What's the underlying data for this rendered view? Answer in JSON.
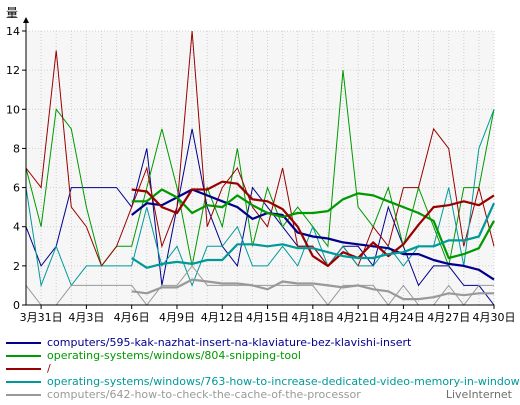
{
  "chart_data": {
    "type": "line",
    "ylabel": "量",
    "ylim": [
      0,
      14
    ],
    "yticks": [
      0,
      2,
      4,
      6,
      8,
      10,
      12,
      14
    ],
    "xticks": [
      "3月31日",
      "4月3日",
      "4月6日",
      "4月9日",
      "4月12日",
      "4月15日",
      "4月18日",
      "4月21日",
      "4月24日",
      "4月27日",
      "4月30日"
    ],
    "x": [
      "3-30",
      "3-31",
      "4-1",
      "4-2",
      "4-3",
      "4-4",
      "4-5",
      "4-6",
      "4-7",
      "4-8",
      "4-9",
      "4-10",
      "4-11",
      "4-12",
      "4-13",
      "4-14",
      "4-15",
      "4-16",
      "4-17",
      "4-18",
      "4-19",
      "4-20",
      "4-21",
      "4-22",
      "4-23",
      "4-24",
      "4-25",
      "4-26",
      "4-27",
      "4-28",
      "4-29",
      "4-30"
    ],
    "grid": true,
    "legend_position": "bottom",
    "series": [
      {
        "name": "computers/595-kak-nazhat-insert-na-klaviature-bez-klavishi-insert",
        "color": "#00008b",
        "daily": [
          4,
          2,
          3,
          6,
          6,
          6,
          6,
          5,
          8,
          1,
          5,
          9,
          5,
          3,
          2,
          6,
          5,
          4,
          3,
          3,
          2,
          3,
          3,
          2,
          5,
          3,
          1,
          2,
          2,
          1,
          1,
          0
        ],
        "avg": [
          null,
          null,
          null,
          null,
          null,
          null,
          null,
          4.6,
          5.2,
          5.1,
          5.5,
          5.9,
          5.6,
          5.3,
          5.0,
          4.4,
          4.7,
          4.6,
          3.7,
          3.5,
          3.4,
          3.2,
          3.1,
          3.0,
          2.9,
          2.6,
          2.6,
          2.3,
          2.1,
          2.0,
          1.8,
          1.3
        ]
      },
      {
        "name": "operating-systems/windows/804-snipping-tool",
        "color": "#009900",
        "daily": [
          7,
          4,
          10,
          9,
          5,
          2,
          3,
          3,
          6,
          9,
          6,
          2,
          6,
          4,
          8,
          3,
          6,
          4,
          5,
          4,
          3,
          12,
          5,
          4,
          6,
          3,
          6,
          4,
          2,
          6,
          6,
          10
        ],
        "avg": [
          null,
          null,
          null,
          null,
          null,
          null,
          null,
          5.3,
          5.3,
          5.9,
          5.5,
          4.7,
          5.1,
          5.0,
          5.6,
          5.1,
          4.7,
          4.5,
          4.7,
          4.7,
          4.8,
          5.4,
          5.7,
          5.6,
          5.3,
          5.0,
          4.7,
          4.3,
          2.4,
          2.6,
          2.9,
          4.3
        ]
      },
      {
        "name": "/",
        "color": "#990000",
        "daily": [
          7,
          6,
          13,
          5,
          4,
          2,
          3,
          5,
          7,
          3,
          5,
          14,
          4,
          6,
          7,
          5,
          4,
          7,
          3,
          3,
          2,
          3,
          2,
          4,
          3,
          6,
          6,
          9,
          8,
          3,
          6,
          3
        ],
        "avg": [
          null,
          null,
          null,
          null,
          null,
          null,
          null,
          5.9,
          5.8,
          5.0,
          4.7,
          5.9,
          5.9,
          6.3,
          6.2,
          5.4,
          5.3,
          4.9,
          4.0,
          2.5,
          2.0,
          2.7,
          2.4,
          3.2,
          2.5,
          3.1,
          4.1,
          5.0,
          5.1,
          5.3,
          5.1,
          5.6
        ]
      },
      {
        "name": "operating-systems/windows/763-how-to-increase-dedicated-video-memory-in-windows",
        "color": "#009999",
        "daily": [
          6,
          1,
          3,
          1,
          2,
          2,
          2,
          2,
          5,
          2,
          3,
          1,
          3,
          3,
          4,
          2,
          2,
          3,
          2,
          4,
          2,
          3,
          2,
          2,
          3,
          2,
          3,
          3,
          6,
          2,
          8,
          10
        ],
        "avg": [
          null,
          null,
          null,
          null,
          null,
          null,
          null,
          2.4,
          1.9,
          2.1,
          2.2,
          2.1,
          2.3,
          2.3,
          3.1,
          3.1,
          3.0,
          3.1,
          2.9,
          2.9,
          2.7,
          2.5,
          2.4,
          2.4,
          2.6,
          2.7,
          3.0,
          3.0,
          3.3,
          3.3,
          3.5,
          5.2
        ]
      },
      {
        "name": "computers/642-how-to-check-the-cache-of-the-processor",
        "color": "#999999",
        "daily": [
          1,
          0,
          0,
          1,
          1,
          1,
          1,
          1,
          0,
          1,
          1,
          2,
          1,
          1,
          1,
          1,
          1,
          1,
          1,
          1,
          0,
          1,
          1,
          1,
          0,
          1,
          0,
          0,
          1,
          0,
          1,
          1
        ],
        "avg": [
          null,
          null,
          null,
          null,
          null,
          null,
          null,
          0.7,
          0.6,
          0.9,
          0.9,
          1.3,
          1.2,
          1.1,
          1.1,
          1.0,
          0.8,
          1.2,
          1.1,
          1.1,
          1.0,
          0.9,
          1.0,
          0.8,
          0.7,
          0.3,
          0.3,
          0.4,
          0.6,
          0.5,
          0.6,
          0.6
        ]
      }
    ]
  },
  "watermark": "LiveInternet"
}
